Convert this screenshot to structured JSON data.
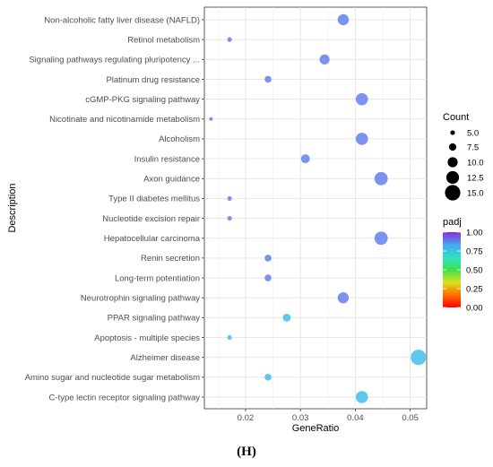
{
  "chart_data": {
    "type": "scatter",
    "title": "",
    "xlabel": "GeneRatio",
    "ylabel": "Description",
    "xlim": [
      0.0125,
      0.053
    ],
    "x_ticks": [
      0.02,
      0.03,
      0.04,
      0.05
    ],
    "x_tick_labels": [
      "0.02",
      "0.03",
      "0.04",
      "0.05"
    ],
    "grid": true,
    "legend_position": "right",
    "size_legend": {
      "title": "Count",
      "values": [
        5.0,
        7.5,
        10.0,
        12.5,
        15.0
      ],
      "labels": [
        "5.0",
        "7.5",
        "10.0",
        "12.5",
        "15.0"
      ]
    },
    "color_legend": {
      "title": "padj",
      "range": [
        0.0,
        1.0
      ],
      "ticks": [
        0.0,
        0.25,
        0.5,
        0.75,
        1.0
      ],
      "labels": [
        "0.00",
        "0.25",
        "0.50",
        "0.75",
        "1.00"
      ]
    },
    "points": [
      {
        "term": "Non-alcoholic fatty liver disease (NAFLD)",
        "gene_ratio": 0.0378,
        "count": 11,
        "padj": 0.88,
        "color": "#7b93ee"
      },
      {
        "term": "Retinol metabolism",
        "gene_ratio": 0.0171,
        "count": 5,
        "padj": 0.87,
        "color": "#7b93ee"
      },
      {
        "term": "Signaling pathways regulating pluripotency ...",
        "gene_ratio": 0.0344,
        "count": 10,
        "padj": 0.88,
        "color": "#7b93ee"
      },
      {
        "term": "Platinum drug resistance",
        "gene_ratio": 0.0241,
        "count": 7,
        "padj": 0.87,
        "color": "#7b93ee"
      },
      {
        "term": "cGMP-PKG signaling pathway",
        "gene_ratio": 0.0412,
        "count": 12,
        "padj": 0.88,
        "color": "#7b93ee"
      },
      {
        "term": "Nicotinate and nicotinamide metabolism",
        "gene_ratio": 0.0137,
        "count": 4,
        "padj": 0.87,
        "color": "#7b93ee"
      },
      {
        "term": "Alcoholism",
        "gene_ratio": 0.0412,
        "count": 12,
        "padj": 0.88,
        "color": "#7b93ee"
      },
      {
        "term": "Insulin resistance",
        "gene_ratio": 0.0309,
        "count": 9,
        "padj": 0.88,
        "color": "#7b93ee"
      },
      {
        "term": "Axon guidance",
        "gene_ratio": 0.0447,
        "count": 13,
        "padj": 0.88,
        "color": "#7b93ee"
      },
      {
        "term": "Type II diabetes mellitus",
        "gene_ratio": 0.0171,
        "count": 5,
        "padj": 0.87,
        "color": "#7b93ee"
      },
      {
        "term": "Nucleotide excision repair",
        "gene_ratio": 0.0171,
        "count": 5,
        "padj": 0.87,
        "color": "#7b93ee"
      },
      {
        "term": "Hepatocellular carcinoma",
        "gene_ratio": 0.0447,
        "count": 13,
        "padj": 0.87,
        "color": "#7b93ee"
      },
      {
        "term": "Renin secretion",
        "gene_ratio": 0.0241,
        "count": 7,
        "padj": 0.87,
        "color": "#7b93ee"
      },
      {
        "term": "Long-term potentiation",
        "gene_ratio": 0.0241,
        "count": 7,
        "padj": 0.87,
        "color": "#7b93ee"
      },
      {
        "term": "Neurotrophin signaling pathway",
        "gene_ratio": 0.0378,
        "count": 11,
        "padj": 0.87,
        "color": "#7b93ee"
      },
      {
        "term": "PPAR signaling pathway",
        "gene_ratio": 0.0275,
        "count": 8,
        "padj": 0.78,
        "color": "#5ec8ec"
      },
      {
        "term": "Apoptosis - multiple species",
        "gene_ratio": 0.0171,
        "count": 5,
        "padj": 0.78,
        "color": "#5ec8ec"
      },
      {
        "term": "Alzheimer disease",
        "gene_ratio": 0.0515,
        "count": 15,
        "padj": 0.78,
        "color": "#5ec8ec"
      },
      {
        "term": "Amino sugar and nucleotide sugar metabolism",
        "gene_ratio": 0.0241,
        "count": 7,
        "padj": 0.78,
        "color": "#5ec8ec"
      },
      {
        "term": "C-type lectin receptor signaling pathway",
        "gene_ratio": 0.0412,
        "count": 12,
        "padj": 0.78,
        "color": "#5ec8ec"
      }
    ]
  },
  "panel_label": "(H)"
}
